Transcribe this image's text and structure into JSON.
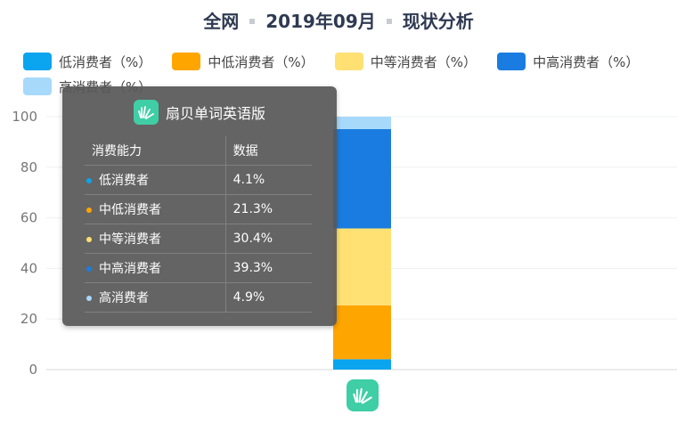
{
  "title": {
    "part1": "全网",
    "part2": "2019年09月",
    "part3": "现状分析"
  },
  "colors": {
    "low": "#0aa4ef",
    "mid_low": "#ffa500",
    "mid": "#fee172",
    "mid_high": "#1a7ce0",
    "high": "#a7d9fb"
  },
  "chart_data": {
    "type": "bar",
    "stacked": true,
    "categories": [
      ""
    ],
    "ylim": [
      0,
      100
    ],
    "yticks": [
      "0",
      "20",
      "40",
      "60",
      "80",
      "100"
    ],
    "grid": true,
    "legend_position": "top",
    "series": [
      {
        "name": "低消费者（%）",
        "values": [
          4.1
        ],
        "color": "#0aa4ef"
      },
      {
        "name": "中低消费者（%）",
        "values": [
          21.3
        ],
        "color": "#ffa500"
      },
      {
        "name": "中等消费者（%）",
        "values": [
          30.4
        ],
        "color": "#fee172"
      },
      {
        "name": "中高消费者（%）",
        "values": [
          39.3
        ],
        "color": "#1a7ce0"
      },
      {
        "name": "高消费者（%）",
        "values": [
          4.9
        ],
        "color": "#a7d9fb"
      }
    ]
  },
  "tooltip": {
    "app_name": "扇贝单词英语版",
    "headers": [
      "消费能力",
      "数据"
    ],
    "rows": [
      {
        "label": "低消费者",
        "value": "4.1%",
        "color": "#0aa4ef"
      },
      {
        "label": "中低消费者",
        "value": "21.3%",
        "color": "#ffa500"
      },
      {
        "label": "中等消费者",
        "value": "30.4%",
        "color": "#fee172"
      },
      {
        "label": "中高消费者",
        "value": "39.3%",
        "color": "#1a7ce0"
      },
      {
        "label": "高消费者",
        "value": "4.9%",
        "color": "#a7d9fb"
      }
    ]
  },
  "bottom_icon": "app-logo-icon"
}
